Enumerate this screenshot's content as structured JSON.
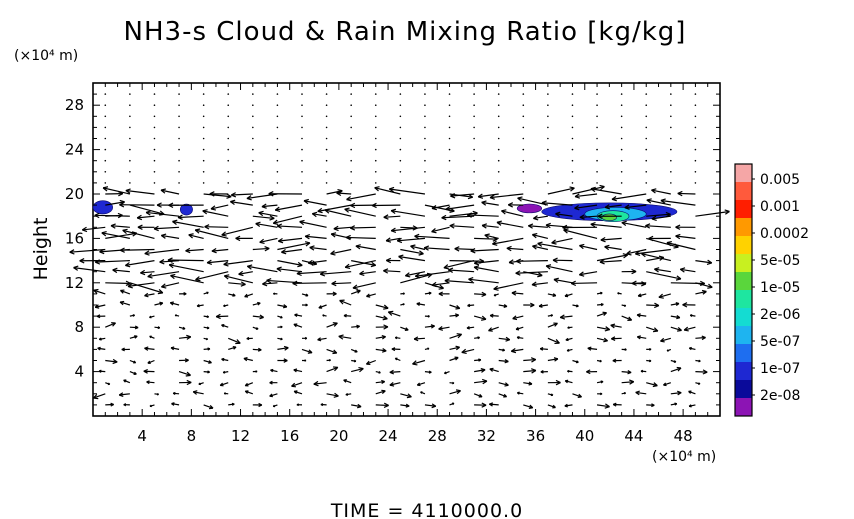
{
  "chart_data": {
    "type": "heatmap",
    "title": "NH3-s Cloud & Rain Mixing Ratio [kg/kg]",
    "ylabel": "Height",
    "y_unit": "(×10⁴ m)",
    "x_unit": "(×10⁴ m)",
    "xlim": [
      0,
      51
    ],
    "ylim": [
      0,
      30
    ],
    "x_ticks": [
      4,
      8,
      12,
      16,
      20,
      24,
      28,
      32,
      36,
      40,
      44,
      48
    ],
    "y_ticks": [
      4,
      8,
      12,
      16,
      20,
      24,
      28
    ],
    "colorbar": {
      "labels": [
        "0.005",
        "0.001",
        "0.0002",
        "5e-05",
        "1e-05",
        "2e-06",
        "5e-07",
        "1e-07",
        "2e-08"
      ],
      "colors": [
        "#f5a6a6",
        "#ff5a3c",
        "#ff1e00",
        "#ff9900",
        "#ffd200",
        "#c8f020",
        "#5ad63c",
        "#1ee6a0",
        "#14dcd2",
        "#1eb4f0",
        "#1e6ef0",
        "#1e28d2",
        "#0a0a9a",
        "#8c14b4"
      ]
    },
    "contour_patches": [
      {
        "x": 0.8,
        "y": 18.8,
        "rx": 0.8,
        "ry": 0.6,
        "level": "1e-07"
      },
      {
        "x": 7.6,
        "y": 18.6,
        "rx": 0.5,
        "ry": 0.5,
        "level": "1e-07"
      },
      {
        "x": 35.5,
        "y": 18.7,
        "rx": 1.0,
        "ry": 0.4,
        "level": "2e-08"
      },
      {
        "x": 42.0,
        "y": 18.4,
        "rx": 5.5,
        "ry": 0.8,
        "level": "1e-07"
      },
      {
        "x": 42.5,
        "y": 18.2,
        "rx": 2.5,
        "ry": 0.6,
        "level": "5e-07"
      },
      {
        "x": 42.3,
        "y": 18.0,
        "rx": 1.3,
        "ry": 0.5,
        "level": "2e-06"
      },
      {
        "x": 42.0,
        "y": 17.9,
        "rx": 0.6,
        "ry": 0.3,
        "level": "1e-05"
      }
    ],
    "wind_field": "vector arrows"
  },
  "footer": {
    "time_label": "TIME = 4110000.0"
  }
}
